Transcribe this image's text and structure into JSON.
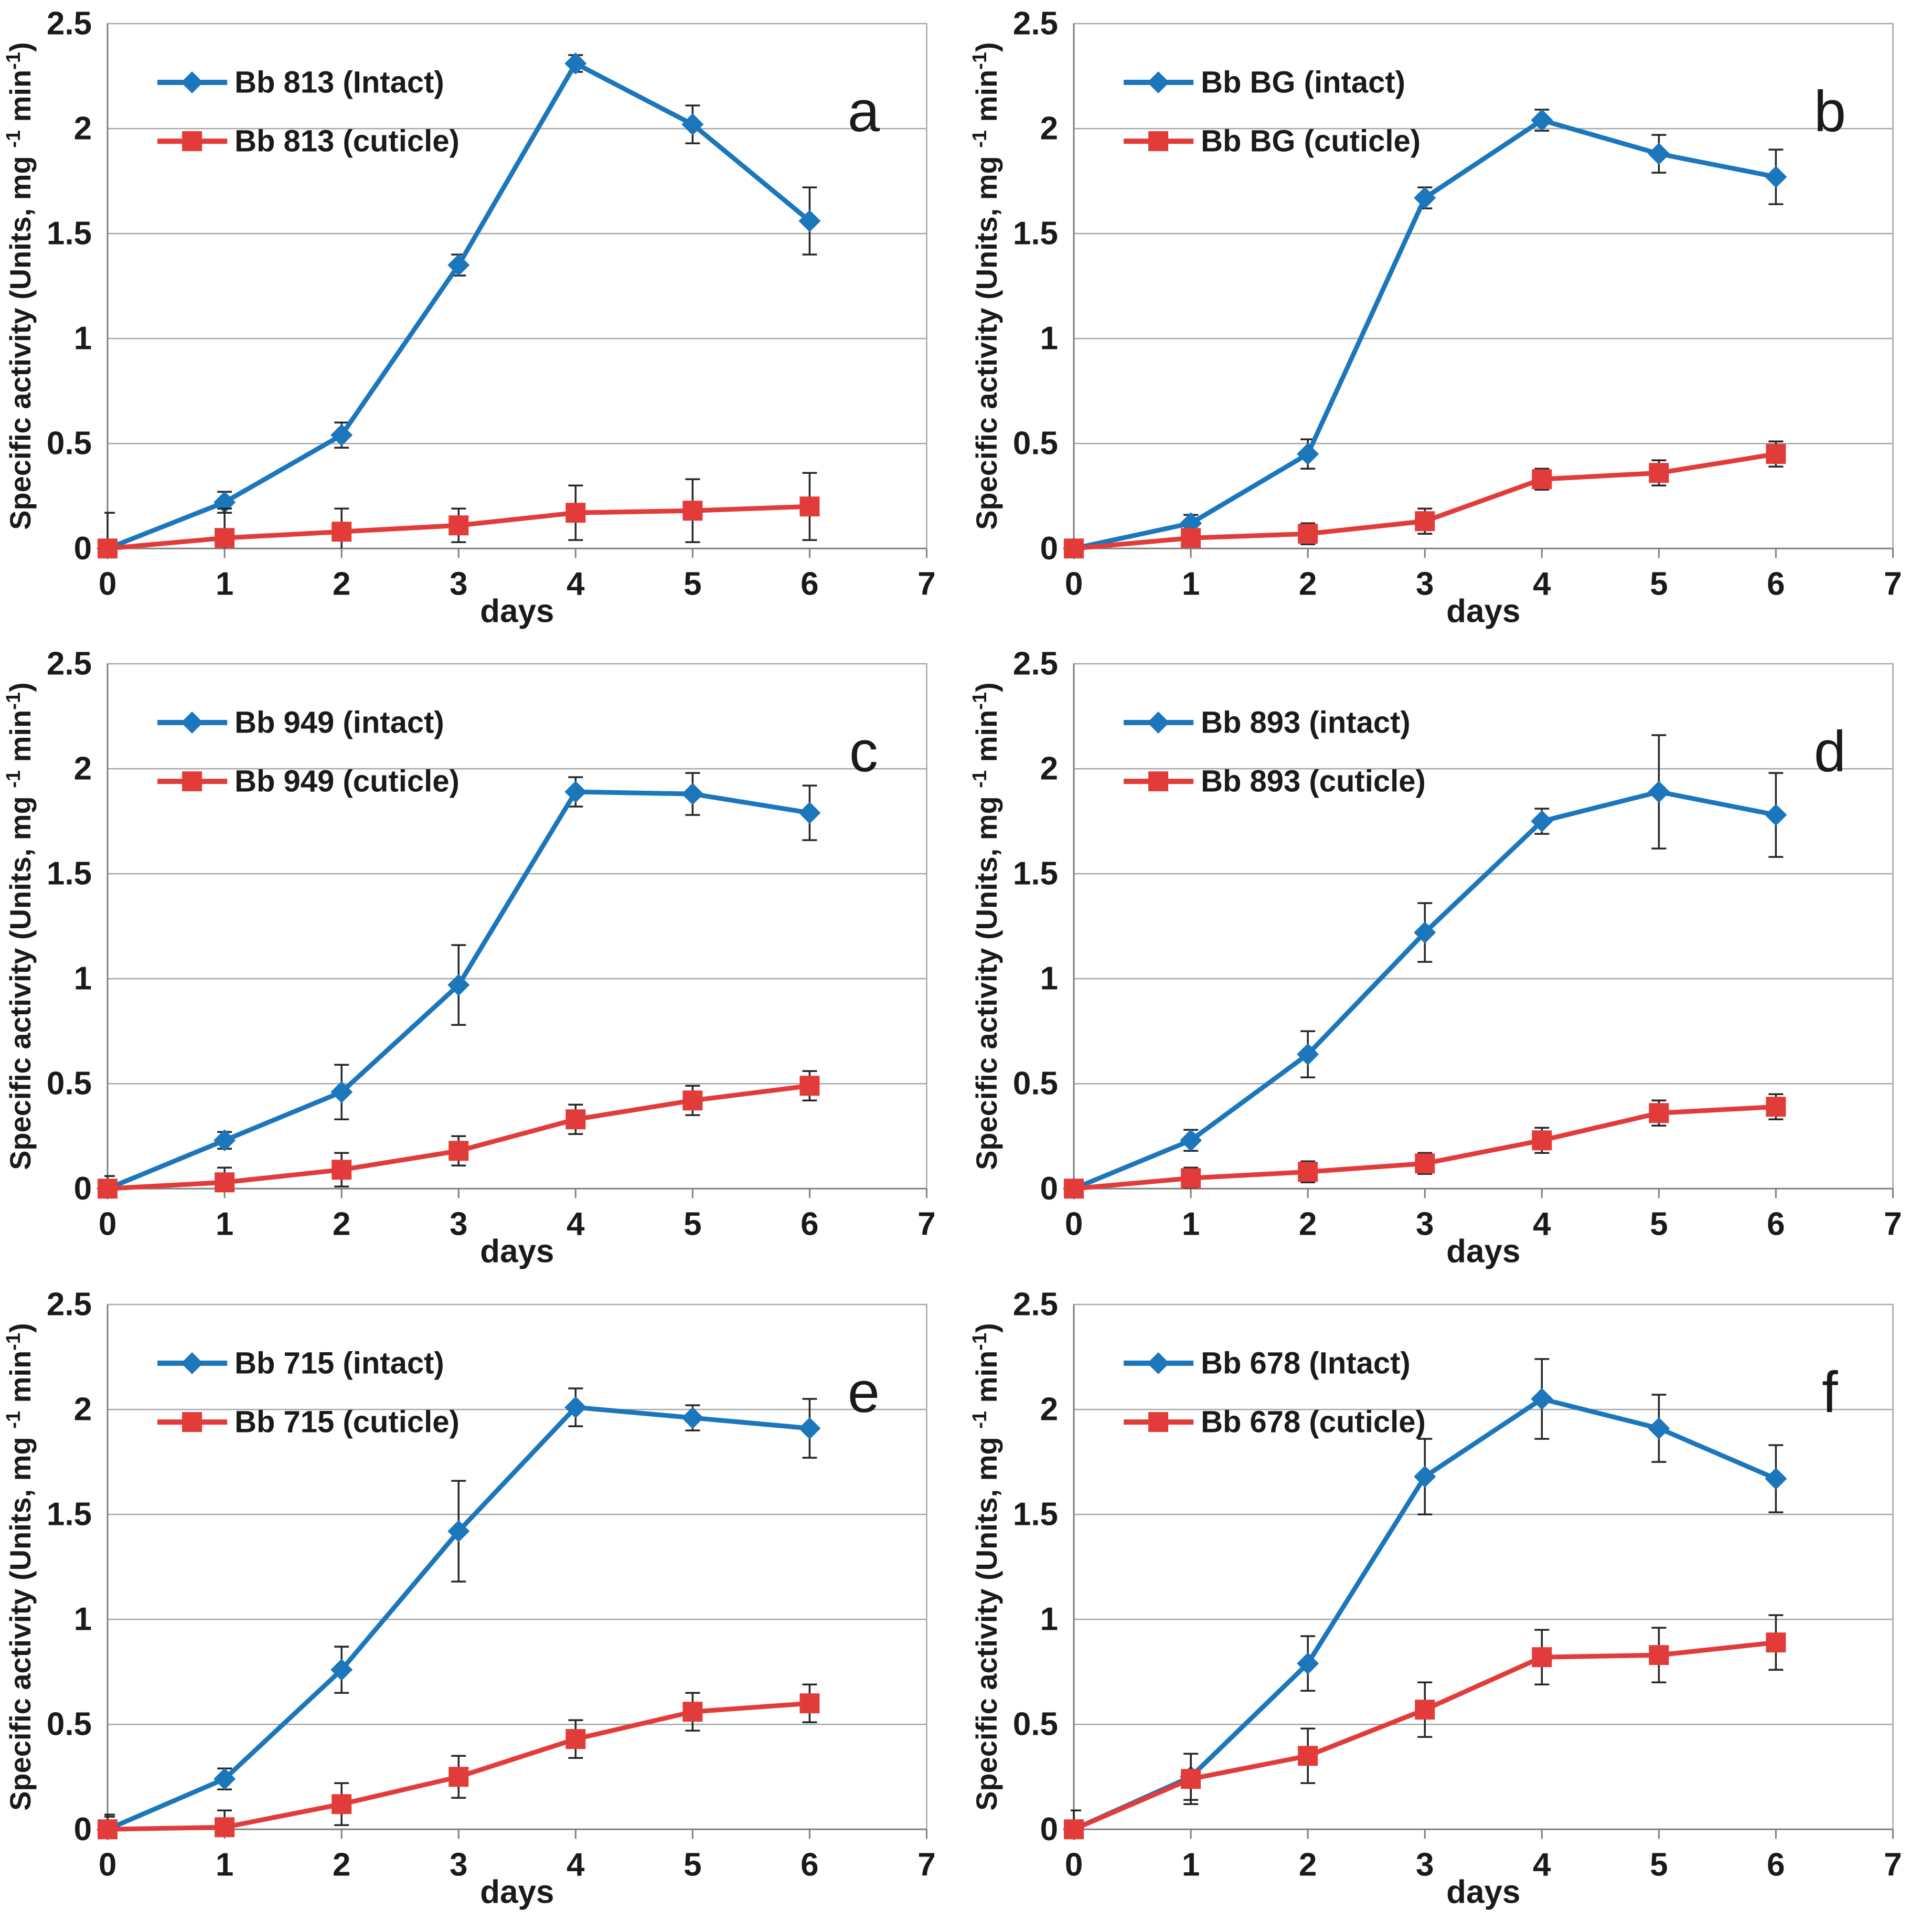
{
  "figure": {
    "ylabel_parts": [
      "Specific activity (Units, mg ",
      "-1",
      " min",
      "-1",
      ")"
    ],
    "xlabel": "days",
    "colors": {
      "intact": "#1B76BC",
      "cuticle": "#E23C3A",
      "gridline": "#A6A6A6",
      "axis": "#7F7F7F",
      "error": "#262626",
      "text": "#1A1A1A",
      "background": "#FFFFFF"
    }
  },
  "chart_data": [
    {
      "panel": "a",
      "type": "line",
      "xlabel": "days",
      "x": [
        0,
        1,
        2,
        3,
        4,
        5,
        6
      ],
      "xlim": [
        0,
        7
      ],
      "ylim": [
        0,
        2.5
      ],
      "x_ticks": [
        0,
        1,
        2,
        3,
        4,
        5,
        6,
        7
      ],
      "y_ticks": [
        "0",
        "0.5",
        "1",
        "1.5",
        "2",
        "2.5"
      ],
      "grid": "horizontal",
      "legend_position": "top-left",
      "series": [
        {
          "name": "Bb 813 (Intact)",
          "role": "intact",
          "marker": "diamond",
          "values": [
            0,
            0.22,
            0.54,
            1.35,
            2.31,
            2.02,
            1.56
          ],
          "errors": [
            0,
            0.05,
            0.06,
            0.05,
            0.04,
            0.09,
            0.16
          ]
        },
        {
          "name": "Bb 813 (cuticle)",
          "role": "cuticle",
          "marker": "square",
          "values": [
            0,
            0.05,
            0.08,
            0.11,
            0.17,
            0.18,
            0.2
          ],
          "errors": [
            0.17,
            0.14,
            0.11,
            0.08,
            0.13,
            0.15,
            0.16
          ]
        }
      ]
    },
    {
      "panel": "b",
      "type": "line",
      "xlabel": "days",
      "x": [
        0,
        1,
        2,
        3,
        4,
        5,
        6
      ],
      "xlim": [
        0,
        7
      ],
      "ylim": [
        0,
        2.5
      ],
      "x_ticks": [
        0,
        1,
        2,
        3,
        4,
        5,
        6,
        7
      ],
      "y_ticks": [
        "0",
        "0.5",
        "1",
        "1.5",
        "2",
        "2.5"
      ],
      "grid": "horizontal",
      "legend_position": "top-left",
      "series": [
        {
          "name": "Bb BG (intact)",
          "role": "intact",
          "marker": "diamond",
          "values": [
            0,
            0.12,
            0.45,
            1.67,
            2.04,
            1.88,
            1.77
          ],
          "errors": [
            0.03,
            0.04,
            0.07,
            0.05,
            0.05,
            0.09,
            0.13
          ]
        },
        {
          "name": "Bb BG (cuticle)",
          "role": "cuticle",
          "marker": "square",
          "values": [
            0,
            0.05,
            0.07,
            0.13,
            0.33,
            0.36,
            0.45
          ],
          "errors": [
            0.03,
            0.04,
            0.05,
            0.06,
            0.05,
            0.06,
            0.06
          ]
        }
      ]
    },
    {
      "panel": "c",
      "type": "line",
      "xlabel": "days",
      "x": [
        0,
        1,
        2,
        3,
        4,
        5,
        6
      ],
      "xlim": [
        0,
        7
      ],
      "ylim": [
        0,
        2.5
      ],
      "x_ticks": [
        0,
        1,
        2,
        3,
        4,
        5,
        6,
        7
      ],
      "y_ticks": [
        "0",
        "0.5",
        "1",
        "1.5",
        "2",
        "2.5"
      ],
      "grid": "horizontal",
      "legend_position": "top-left",
      "series": [
        {
          "name": "Bb 949 (intact)",
          "role": "intact",
          "marker": "diamond",
          "values": [
            0,
            0.23,
            0.46,
            0.97,
            1.89,
            1.88,
            1.79
          ],
          "errors": [
            0.06,
            0.04,
            0.13,
            0.19,
            0.07,
            0.1,
            0.13
          ]
        },
        {
          "name": "Bb 949 (cuticle)",
          "role": "cuticle",
          "marker": "square",
          "values": [
            0,
            0.03,
            0.09,
            0.18,
            0.33,
            0.42,
            0.49
          ],
          "errors": [
            0.02,
            0.07,
            0.08,
            0.07,
            0.07,
            0.07,
            0.07
          ]
        }
      ]
    },
    {
      "panel": "d",
      "type": "line",
      "xlabel": "days",
      "x": [
        0,
        1,
        2,
        3,
        4,
        5,
        6
      ],
      "xlim": [
        0,
        7
      ],
      "ylim": [
        0,
        2.5
      ],
      "x_ticks": [
        0,
        1,
        2,
        3,
        4,
        5,
        6,
        7
      ],
      "y_ticks": [
        "0",
        "0.5",
        "1",
        "1.5",
        "2",
        "2.5"
      ],
      "grid": "horizontal",
      "legend_position": "top-left",
      "series": [
        {
          "name": "Bb 893 (intact)",
          "role": "intact",
          "marker": "diamond",
          "values": [
            0,
            0.23,
            0.64,
            1.22,
            1.75,
            1.89,
            1.78
          ],
          "errors": [
            0.04,
            0.05,
            0.11,
            0.14,
            0.06,
            0.27,
            0.2
          ]
        },
        {
          "name": "Bb 893 (cuticle)",
          "role": "cuticle",
          "marker": "square",
          "values": [
            0,
            0.05,
            0.08,
            0.12,
            0.23,
            0.36,
            0.39
          ],
          "errors": [
            0.01,
            0.05,
            0.05,
            0.05,
            0.06,
            0.06,
            0.06
          ]
        }
      ]
    },
    {
      "panel": "e",
      "type": "line",
      "xlabel": "days",
      "x": [
        0,
        1,
        2,
        3,
        4,
        5,
        6
      ],
      "xlim": [
        0,
        7
      ],
      "ylim": [
        0,
        2.5
      ],
      "x_ticks": [
        0,
        1,
        2,
        3,
        4,
        5,
        6,
        7
      ],
      "y_ticks": [
        "0",
        "0.5",
        "1",
        "1.5",
        "2",
        "2.5"
      ],
      "grid": "horizontal",
      "legend_position": "top-left",
      "series": [
        {
          "name": "Bb 715 (intact)",
          "role": "intact",
          "marker": "diamond",
          "values": [
            0,
            0.24,
            0.76,
            1.42,
            2.01,
            1.96,
            1.91
          ],
          "errors": [
            0.06,
            0.05,
            0.11,
            0.24,
            0.09,
            0.06,
            0.14
          ]
        },
        {
          "name": "Bb 715 (cuticle)",
          "role": "cuticle",
          "marker": "square",
          "values": [
            0,
            0.01,
            0.12,
            0.25,
            0.43,
            0.56,
            0.6
          ],
          "errors": [
            0.07,
            0.08,
            0.1,
            0.1,
            0.09,
            0.09,
            0.09
          ]
        }
      ]
    },
    {
      "panel": "f",
      "type": "line",
      "xlabel": "days",
      "x": [
        0,
        1,
        2,
        3,
        4,
        5,
        6
      ],
      "xlim": [
        0,
        7
      ],
      "ylim": [
        0,
        2.5
      ],
      "x_ticks": [
        0,
        1,
        2,
        3,
        4,
        5,
        6,
        7
      ],
      "y_ticks": [
        "0",
        "0.5",
        "1",
        "1.5",
        "2",
        "2.5"
      ],
      "grid": "horizontal",
      "legend_position": "top-left",
      "series": [
        {
          "name": "Bb 678 (Intact)",
          "role": "intact",
          "marker": "diamond",
          "values": [
            0,
            0.25,
            0.79,
            1.68,
            2.05,
            1.91,
            1.67
          ],
          "errors": [
            0.09,
            0.11,
            0.13,
            0.18,
            0.19,
            0.16,
            0.16
          ]
        },
        {
          "name": "Bb 678 (cuticle)",
          "role": "cuticle",
          "marker": "square",
          "values": [
            0,
            0.24,
            0.35,
            0.57,
            0.82,
            0.83,
            0.89
          ],
          "errors": [
            0.09,
            0.12,
            0.13,
            0.13,
            0.13,
            0.13,
            0.13
          ]
        }
      ]
    }
  ]
}
